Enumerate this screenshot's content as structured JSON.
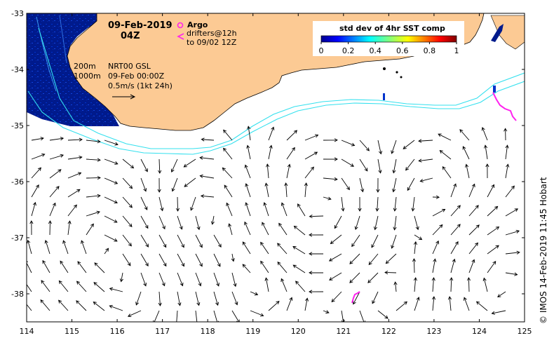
{
  "map": {
    "date_line1": "09-Feb-2019",
    "date_line2": "04Z",
    "argo_label": "Argo",
    "drifters_line1": "drifters@12h",
    "drifters_line2": "to 09/02 12Z",
    "isobath_200": "200m",
    "isobath_1000": "1000m",
    "product": "NRT00 GSL",
    "product_time": "09-Feb 00:00Z",
    "scale_label": "0.5m/s (1kt 24h)",
    "credit": "©  IMOS 14-Feb-2019 11:45 Hobart",
    "colors": {
      "land": "#fcca94",
      "isobath": "#33e0ee",
      "drifter": "#ff22ee",
      "sst_deep": "#001a8c"
    },
    "lon_ticks": [
      "114",
      "115",
      "116",
      "117",
      "118",
      "119",
      "120",
      "121",
      "122",
      "123",
      "124",
      "125"
    ],
    "lat_ticks": [
      "-33",
      "-34",
      "-35",
      "-36",
      "-37",
      "-38"
    ]
  },
  "colorbar": {
    "title": "std dev of 4hr SST comp",
    "ticks": [
      "0",
      "0.2",
      "0.4",
      "0.6",
      "0.8",
      "1"
    ]
  }
}
